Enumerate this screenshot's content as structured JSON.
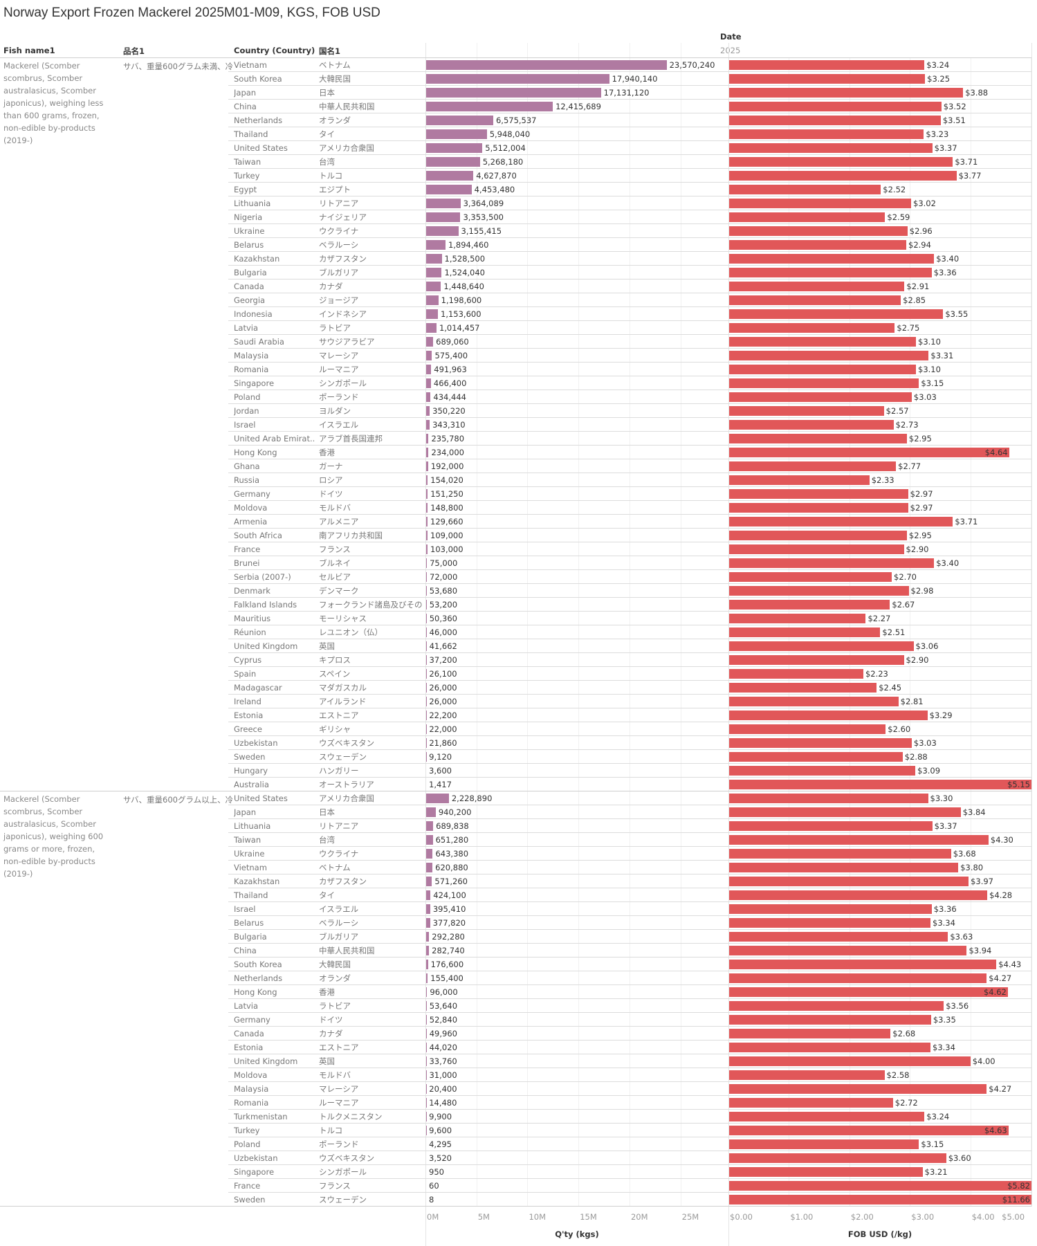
{
  "chart_data": {
    "type": "bar",
    "title": "Norway Export Frozen Mackerel 2025M01-M09, KGS, FOB USD",
    "header": {
      "date_label": "Date",
      "year": "2025",
      "columns": [
        "Fish name1",
        "品名1",
        "Country (Country)",
        "国名1"
      ]
    },
    "axes": {
      "qty": {
        "label": "Q'ty (kgs)",
        "ticks": [
          "0M",
          "5M",
          "10M",
          "15M",
          "20M",
          "25M"
        ],
        "tick_values": [
          0,
          5000000,
          10000000,
          15000000,
          20000000,
          25000000
        ],
        "range": [
          0,
          29700000
        ]
      },
      "fob": {
        "label": "FOB USD (/kg)",
        "ticks": [
          "$0.00",
          "$1.00",
          "$2.00",
          "$3.00",
          "$4.00",
          "$5.00"
        ],
        "tick_values": [
          0,
          1,
          2,
          3,
          4,
          5
        ],
        "range": [
          0,
          5.01
        ]
      }
    },
    "grid": true,
    "colors": {
      "qty": "#b07aa1",
      "fob": "#e15759"
    },
    "groups": [
      {
        "fish_name": "Mackerel (Scomber scombrus, Scomber australasicus, Scomber japonicus), weighing less than 600 grams, frozen, non-edible by-products (2019-)",
        "hinmei": "サバ、重量600グラム未満、冷..",
        "rows": [
          {
            "country": "Vietnam",
            "country_ja": "ベトナム",
            "qty": 23570240,
            "fob": 3.24
          },
          {
            "country": "South Korea",
            "country_ja": "大韓民国",
            "qty": 17940140,
            "fob": 3.25
          },
          {
            "country": "Japan",
            "country_ja": "日本",
            "qty": 17131120,
            "fob": 3.88
          },
          {
            "country": "China",
            "country_ja": "中華人民共和国",
            "qty": 12415689,
            "fob": 3.52
          },
          {
            "country": "Netherlands",
            "country_ja": "オランダ",
            "qty": 6575537,
            "fob": 3.51
          },
          {
            "country": "Thailand",
            "country_ja": "タイ",
            "qty": 5948040,
            "fob": 3.23
          },
          {
            "country": "United States",
            "country_ja": "アメリカ合衆国",
            "qty": 5512004,
            "fob": 3.37
          },
          {
            "country": "Taiwan",
            "country_ja": "台湾",
            "qty": 5268180,
            "fob": 3.71
          },
          {
            "country": "Turkey",
            "country_ja": "トルコ",
            "qty": 4627870,
            "fob": 3.77
          },
          {
            "country": "Egypt",
            "country_ja": "エジプト",
            "qty": 4453480,
            "fob": 2.52
          },
          {
            "country": "Lithuania",
            "country_ja": "リトアニア",
            "qty": 3364089,
            "fob": 3.02
          },
          {
            "country": "Nigeria",
            "country_ja": "ナイジェリア",
            "qty": 3353500,
            "fob": 2.59
          },
          {
            "country": "Ukraine",
            "country_ja": "ウクライナ",
            "qty": 3155415,
            "fob": 2.96
          },
          {
            "country": "Belarus",
            "country_ja": "ベラルーシ",
            "qty": 1894460,
            "fob": 2.94
          },
          {
            "country": "Kazakhstan",
            "country_ja": "カザフスタン",
            "qty": 1528500,
            "fob": 3.4
          },
          {
            "country": "Bulgaria",
            "country_ja": "ブルガリア",
            "qty": 1524040,
            "fob": 3.36
          },
          {
            "country": "Canada",
            "country_ja": "カナダ",
            "qty": 1448640,
            "fob": 2.91
          },
          {
            "country": "Georgia",
            "country_ja": "ジョージア",
            "qty": 1198600,
            "fob": 2.85
          },
          {
            "country": "Indonesia",
            "country_ja": "インドネシア",
            "qty": 1153600,
            "fob": 3.55
          },
          {
            "country": "Latvia",
            "country_ja": "ラトビア",
            "qty": 1014457,
            "fob": 2.75
          },
          {
            "country": "Saudi Arabia",
            "country_ja": "サウジアラビア",
            "qty": 689060,
            "fob": 3.1
          },
          {
            "country": "Malaysia",
            "country_ja": "マレーシア",
            "qty": 575400,
            "fob": 3.31
          },
          {
            "country": "Romania",
            "country_ja": "ルーマニア",
            "qty": 491963,
            "fob": 3.1
          },
          {
            "country": "Singapore",
            "country_ja": "シンガポール",
            "qty": 466400,
            "fob": 3.15
          },
          {
            "country": "Poland",
            "country_ja": "ポーランド",
            "qty": 434444,
            "fob": 3.03
          },
          {
            "country": "Jordan",
            "country_ja": "ヨルダン",
            "qty": 350220,
            "fob": 2.57
          },
          {
            "country": "Israel",
            "country_ja": "イスラエル",
            "qty": 343310,
            "fob": 2.73
          },
          {
            "country": "United Arab Emirat..",
            "country_ja": "アラブ首長国連邦",
            "qty": 235780,
            "fob": 2.95
          },
          {
            "country": "Hong Kong",
            "country_ja": "香港",
            "qty": 234000,
            "fob": 4.64
          },
          {
            "country": "Ghana",
            "country_ja": "ガーナ",
            "qty": 192000,
            "fob": 2.77
          },
          {
            "country": "Russia",
            "country_ja": "ロシア",
            "qty": 154020,
            "fob": 2.33
          },
          {
            "country": "Germany",
            "country_ja": "ドイツ",
            "qty": 151250,
            "fob": 2.97
          },
          {
            "country": "Moldova",
            "country_ja": "モルドバ",
            "qty": 148800,
            "fob": 2.97
          },
          {
            "country": "Armenia",
            "country_ja": "アルメニア",
            "qty": 129660,
            "fob": 3.71
          },
          {
            "country": "South Africa",
            "country_ja": "南アフリカ共和国",
            "qty": 109000,
            "fob": 2.95
          },
          {
            "country": "France",
            "country_ja": "フランス",
            "qty": 103000,
            "fob": 2.9
          },
          {
            "country": "Brunei",
            "country_ja": "ブルネイ",
            "qty": 75000,
            "fob": 3.4
          },
          {
            "country": "Serbia (2007-)",
            "country_ja": "セルビア",
            "qty": 72000,
            "fob": 2.7
          },
          {
            "country": "Denmark",
            "country_ja": "デンマーク",
            "qty": 53680,
            "fob": 2.98
          },
          {
            "country": "Falkland Islands",
            "country_ja": "フォークランド諸島及びその附..",
            "qty": 53200,
            "fob": 2.67
          },
          {
            "country": "Mauritius",
            "country_ja": "モーリシャス",
            "qty": 50360,
            "fob": 2.27
          },
          {
            "country": "Réunion",
            "country_ja": "レユニオン（仏）",
            "qty": 46000,
            "fob": 2.51
          },
          {
            "country": "United Kingdom",
            "country_ja": "英国",
            "qty": 41662,
            "fob": 3.06
          },
          {
            "country": "Cyprus",
            "country_ja": "キプロス",
            "qty": 37200,
            "fob": 2.9
          },
          {
            "country": "Spain",
            "country_ja": "スペイン",
            "qty": 26100,
            "fob": 2.23
          },
          {
            "country": "Madagascar",
            "country_ja": "マダガスカル",
            "qty": 26000,
            "fob": 2.45
          },
          {
            "country": "Ireland",
            "country_ja": "アイルランド",
            "qty": 26000,
            "fob": 2.81
          },
          {
            "country": "Estonia",
            "country_ja": "エストニア",
            "qty": 22200,
            "fob": 3.29
          },
          {
            "country": "Greece",
            "country_ja": "ギリシャ",
            "qty": 22000,
            "fob": 2.6
          },
          {
            "country": "Uzbekistan",
            "country_ja": "ウズベキスタン",
            "qty": 21860,
            "fob": 3.03
          },
          {
            "country": "Sweden",
            "country_ja": "スウェーデン",
            "qty": 9120,
            "fob": 2.88
          },
          {
            "country": "Hungary",
            "country_ja": "ハンガリー",
            "qty": 3600,
            "fob": 3.09
          },
          {
            "country": "Australia",
            "country_ja": "オーストラリア",
            "qty": 1417,
            "fob": 5.15
          }
        ]
      },
      {
        "fish_name": "Mackerel (Scomber scombrus, Scomber australasicus, Scomber japonicus), weighing 600 grams or more, frozen, non-edible by-products (2019-)",
        "hinmei": "サバ、重量600グラム以上、冷..",
        "rows": [
          {
            "country": "United States",
            "country_ja": "アメリカ合衆国",
            "qty": 2228890,
            "fob": 3.3
          },
          {
            "country": "Japan",
            "country_ja": "日本",
            "qty": 940200,
            "fob": 3.84
          },
          {
            "country": "Lithuania",
            "country_ja": "リトアニア",
            "qty": 689838,
            "fob": 3.37
          },
          {
            "country": "Taiwan",
            "country_ja": "台湾",
            "qty": 651280,
            "fob": 4.3
          },
          {
            "country": "Ukraine",
            "country_ja": "ウクライナ",
            "qty": 643380,
            "fob": 3.68
          },
          {
            "country": "Vietnam",
            "country_ja": "ベトナム",
            "qty": 620880,
            "fob": 3.8
          },
          {
            "country": "Kazakhstan",
            "country_ja": "カザフスタン",
            "qty": 571260,
            "fob": 3.97
          },
          {
            "country": "Thailand",
            "country_ja": "タイ",
            "qty": 424100,
            "fob": 4.28
          },
          {
            "country": "Israel",
            "country_ja": "イスラエル",
            "qty": 395410,
            "fob": 3.36
          },
          {
            "country": "Belarus",
            "country_ja": "ベラルーシ",
            "qty": 377820,
            "fob": 3.34
          },
          {
            "country": "Bulgaria",
            "country_ja": "ブルガリア",
            "qty": 292280,
            "fob": 3.63
          },
          {
            "country": "China",
            "country_ja": "中華人民共和国",
            "qty": 282740,
            "fob": 3.94
          },
          {
            "country": "South Korea",
            "country_ja": "大韓民国",
            "qty": 176600,
            "fob": 4.43
          },
          {
            "country": "Netherlands",
            "country_ja": "オランダ",
            "qty": 155400,
            "fob": 4.27
          },
          {
            "country": "Hong Kong",
            "country_ja": "香港",
            "qty": 96000,
            "fob": 4.62
          },
          {
            "country": "Latvia",
            "country_ja": "ラトビア",
            "qty": 53640,
            "fob": 3.56
          },
          {
            "country": "Germany",
            "country_ja": "ドイツ",
            "qty": 52840,
            "fob": 3.35
          },
          {
            "country": "Canada",
            "country_ja": "カナダ",
            "qty": 49960,
            "fob": 2.68
          },
          {
            "country": "Estonia",
            "country_ja": "エストニア",
            "qty": 44020,
            "fob": 3.34
          },
          {
            "country": "United Kingdom",
            "country_ja": "英国",
            "qty": 33760,
            "fob": 4.0
          },
          {
            "country": "Moldova",
            "country_ja": "モルドバ",
            "qty": 31000,
            "fob": 2.58
          },
          {
            "country": "Malaysia",
            "country_ja": "マレーシア",
            "qty": 20400,
            "fob": 4.27
          },
          {
            "country": "Romania",
            "country_ja": "ルーマニア",
            "qty": 14480,
            "fob": 2.72
          },
          {
            "country": "Turkmenistan",
            "country_ja": "トルクメニスタン",
            "qty": 9900,
            "fob": 3.24
          },
          {
            "country": "Turkey",
            "country_ja": "トルコ",
            "qty": 9600,
            "fob": 4.63
          },
          {
            "country": "Poland",
            "country_ja": "ポーランド",
            "qty": 4295,
            "fob": 3.15
          },
          {
            "country": "Uzbekistan",
            "country_ja": "ウズベキスタン",
            "qty": 3520,
            "fob": 3.6
          },
          {
            "country": "Singapore",
            "country_ja": "シンガポール",
            "qty": 950,
            "fob": 3.21
          },
          {
            "country": "France",
            "country_ja": "フランス",
            "qty": 60,
            "fob": 5.82
          },
          {
            "country": "Sweden",
            "country_ja": "スウェーデン",
            "qty": 8,
            "fob": 11.66
          }
        ]
      }
    ]
  }
}
